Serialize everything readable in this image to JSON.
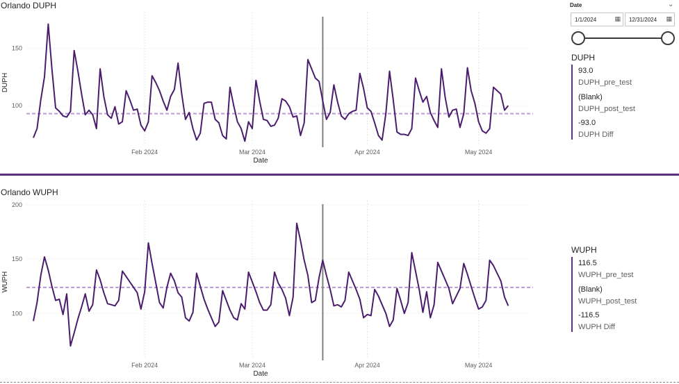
{
  "panel1": {
    "title": "Orlando DUPH"
  },
  "panel2": {
    "title": "Orlando WUPH"
  },
  "slicer": {
    "title": "Date",
    "start": "1/1/2024",
    "end": "12/31/2024"
  },
  "kpi1": {
    "title": "DUPH",
    "items": [
      {
        "value": "93.0",
        "label": "DUPH_pre_test"
      },
      {
        "value": "(Blank)",
        "label": "DUPH_post_test"
      },
      {
        "value": "-93.0",
        "label": "DUPH Diff"
      }
    ]
  },
  "kpi2": {
    "title": "WUPH",
    "items": [
      {
        "value": "116.5",
        "label": "WUPH_pre_test"
      },
      {
        "value": "(Blank)",
        "label": "WUPH_post_test"
      },
      {
        "value": "-116.5",
        "label": "WUPH Diff"
      }
    ]
  },
  "colors": {
    "line": "#4b1c6e",
    "avg": "#b89ad6",
    "marker": "#808080",
    "accent": "#5b2c83"
  },
  "chart_data": [
    {
      "type": "line",
      "ylabel": "DUPH",
      "xlabel": "Date",
      "x_ticks": [
        "Feb 2024",
        "Mar 2024",
        "Apr 2024",
        "May 2024"
      ],
      "y_ticks": [
        100,
        150
      ],
      "ylim": [
        65,
        175
      ],
      "x_range": [
        "2024-01-02",
        "2024-05-11"
      ],
      "average_line": 93,
      "marker_date": "2024-03-20",
      "grid": "vertical dotted",
      "points": [
        [
          "2024-01-02",
          72
        ],
        [
          "2024-01-03",
          80
        ],
        [
          "2024-01-04",
          105
        ],
        [
          "2024-01-05",
          125
        ],
        [
          "2024-01-06",
          171
        ],
        [
          "2024-01-07",
          132
        ],
        [
          "2024-01-08",
          98
        ],
        [
          "2024-01-09",
          95
        ],
        [
          "2024-01-10",
          91
        ],
        [
          "2024-01-11",
          90
        ],
        [
          "2024-01-12",
          95
        ],
        [
          "2024-01-13",
          148
        ],
        [
          "2024-01-14",
          130
        ],
        [
          "2024-01-15",
          110
        ],
        [
          "2024-01-16",
          92
        ],
        [
          "2024-01-17",
          96
        ],
        [
          "2024-01-18",
          92
        ],
        [
          "2024-01-19",
          80
        ],
        [
          "2024-01-20",
          132
        ],
        [
          "2024-01-21",
          108
        ],
        [
          "2024-01-22",
          92
        ],
        [
          "2024-01-23",
          89
        ],
        [
          "2024-01-24",
          99
        ],
        [
          "2024-01-25",
          84
        ],
        [
          "2024-01-26",
          86
        ],
        [
          "2024-01-27",
          113
        ],
        [
          "2024-01-28",
          105
        ],
        [
          "2024-01-29",
          96
        ],
        [
          "2024-01-30",
          97
        ],
        [
          "2024-01-31",
          83
        ],
        [
          "2024-02-01",
          78
        ],
        [
          "2024-02-02",
          86
        ],
        [
          "2024-02-03",
          126
        ],
        [
          "2024-02-04",
          120
        ],
        [
          "2024-02-05",
          113
        ],
        [
          "2024-02-06",
          104
        ],
        [
          "2024-02-07",
          96
        ],
        [
          "2024-02-08",
          108
        ],
        [
          "2024-02-09",
          114
        ],
        [
          "2024-02-10",
          137
        ],
        [
          "2024-02-11",
          110
        ],
        [
          "2024-02-12",
          88
        ],
        [
          "2024-02-13",
          94
        ],
        [
          "2024-02-14",
          80
        ],
        [
          "2024-02-15",
          70
        ],
        [
          "2024-02-16",
          76
        ],
        [
          "2024-02-17",
          102
        ],
        [
          "2024-02-18",
          103
        ],
        [
          "2024-02-19",
          103
        ],
        [
          "2024-02-20",
          88
        ],
        [
          "2024-02-21",
          85
        ],
        [
          "2024-02-22",
          74
        ],
        [
          "2024-02-23",
          71
        ],
        [
          "2024-02-24",
          116
        ],
        [
          "2024-02-25",
          100
        ],
        [
          "2024-02-26",
          86
        ],
        [
          "2024-02-27",
          80
        ],
        [
          "2024-02-28",
          69
        ],
        [
          "2024-02-29",
          86
        ],
        [
          "2024-03-01",
          80
        ],
        [
          "2024-03-02",
          122
        ],
        [
          "2024-03-03",
          104
        ],
        [
          "2024-03-04",
          88
        ],
        [
          "2024-03-05",
          87
        ],
        [
          "2024-03-06",
          82
        ],
        [
          "2024-03-07",
          83
        ],
        [
          "2024-03-08",
          89
        ],
        [
          "2024-03-09",
          106
        ],
        [
          "2024-03-10",
          104
        ],
        [
          "2024-03-11",
          99
        ],
        [
          "2024-03-12",
          90
        ],
        [
          "2024-03-13",
          91
        ],
        [
          "2024-03-14",
          74
        ],
        [
          "2024-03-15",
          85
        ],
        [
          "2024-03-16",
          140
        ],
        [
          "2024-03-17",
          132
        ],
        [
          "2024-03-18",
          124
        ],
        [
          "2024-03-19",
          121
        ],
        [
          "2024-03-20",
          104
        ],
        [
          "2024-03-21",
          88
        ],
        [
          "2024-03-22",
          94
        ],
        [
          "2024-03-23",
          118
        ],
        [
          "2024-03-24",
          103
        ],
        [
          "2024-03-25",
          91
        ],
        [
          "2024-03-26",
          88
        ],
        [
          "2024-03-27",
          93
        ],
        [
          "2024-03-28",
          95
        ],
        [
          "2024-03-29",
          96
        ],
        [
          "2024-03-30",
          128
        ],
        [
          "2024-03-31",
          115
        ],
        [
          "2024-04-01",
          98
        ],
        [
          "2024-04-02",
          95
        ],
        [
          "2024-04-03",
          85
        ],
        [
          "2024-04-04",
          74
        ],
        [
          "2024-04-05",
          70
        ],
        [
          "2024-04-06",
          93
        ],
        [
          "2024-04-07",
          130
        ],
        [
          "2024-04-08",
          105
        ],
        [
          "2024-04-09",
          77
        ],
        [
          "2024-04-10",
          75
        ],
        [
          "2024-04-11",
          75
        ],
        [
          "2024-04-12",
          74
        ],
        [
          "2024-04-13",
          80
        ],
        [
          "2024-04-14",
          124
        ],
        [
          "2024-04-15",
          113
        ],
        [
          "2024-04-16",
          103
        ],
        [
          "2024-04-17",
          108
        ],
        [
          "2024-04-18",
          94
        ],
        [
          "2024-04-19",
          87
        ],
        [
          "2024-04-20",
          81
        ],
        [
          "2024-04-21",
          132
        ],
        [
          "2024-04-22",
          107
        ],
        [
          "2024-04-23",
          90
        ],
        [
          "2024-04-24",
          96
        ],
        [
          "2024-04-25",
          97
        ],
        [
          "2024-04-26",
          81
        ],
        [
          "2024-04-27",
          93
        ],
        [
          "2024-04-28",
          133
        ],
        [
          "2024-04-29",
          113
        ],
        [
          "2024-04-30",
          102
        ],
        [
          "2024-05-01",
          86
        ],
        [
          "2024-05-02",
          78
        ],
        [
          "2024-05-03",
          76
        ],
        [
          "2024-05-04",
          80
        ],
        [
          "2024-05-05",
          116
        ],
        [
          "2024-05-06",
          113
        ],
        [
          "2024-05-07",
          110
        ],
        [
          "2024-05-08",
          96
        ],
        [
          "2024-05-09",
          100
        ]
      ]
    },
    {
      "type": "line",
      "ylabel": "WUPH",
      "xlabel": "Date",
      "x_ticks": [
        "Feb 2024",
        "Mar 2024",
        "Apr 2024",
        "May 2024"
      ],
      "y_ticks": [
        100,
        150,
        200
      ],
      "ylim": [
        58,
        200
      ],
      "x_range": [
        "2024-01-02",
        "2024-05-11"
      ],
      "average_line": 124,
      "marker_date": "2024-03-20",
      "grid": "vertical dotted",
      "points": [
        [
          "2024-01-02",
          93
        ],
        [
          "2024-01-03",
          110
        ],
        [
          "2024-01-04",
          135
        ],
        [
          "2024-01-05",
          152
        ],
        [
          "2024-01-06",
          140
        ],
        [
          "2024-01-07",
          125
        ],
        [
          "2024-01-08",
          112
        ],
        [
          "2024-01-09",
          113
        ],
        [
          "2024-01-10",
          99
        ],
        [
          "2024-01-11",
          118
        ],
        [
          "2024-01-12",
          70
        ],
        [
          "2024-01-13",
          82
        ],
        [
          "2024-01-14",
          95
        ],
        [
          "2024-01-15",
          106
        ],
        [
          "2024-01-16",
          118
        ],
        [
          "2024-01-17",
          102
        ],
        [
          "2024-01-18",
          108
        ],
        [
          "2024-01-19",
          140
        ],
        [
          "2024-01-20",
          131
        ],
        [
          "2024-01-21",
          119
        ],
        [
          "2024-01-22",
          109
        ],
        [
          "2024-01-23",
          108
        ],
        [
          "2024-01-24",
          107
        ],
        [
          "2024-01-25",
          112
        ],
        [
          "2024-01-26",
          139
        ],
        [
          "2024-01-27",
          134
        ],
        [
          "2024-01-28",
          129
        ],
        [
          "2024-01-29",
          124
        ],
        [
          "2024-01-30",
          119
        ],
        [
          "2024-01-31",
          104
        ],
        [
          "2024-02-01",
          120
        ],
        [
          "2024-02-02",
          165
        ],
        [
          "2024-02-03",
          146
        ],
        [
          "2024-02-04",
          128
        ],
        [
          "2024-02-05",
          110
        ],
        [
          "2024-02-06",
          105
        ],
        [
          "2024-02-07",
          124
        ],
        [
          "2024-02-08",
          137
        ],
        [
          "2024-02-09",
          130
        ],
        [
          "2024-02-10",
          119
        ],
        [
          "2024-02-11",
          115
        ],
        [
          "2024-02-12",
          96
        ],
        [
          "2024-02-13",
          93
        ],
        [
          "2024-02-14",
          101
        ],
        [
          "2024-02-15",
          137
        ],
        [
          "2024-02-16",
          125
        ],
        [
          "2024-02-17",
          113
        ],
        [
          "2024-02-18",
          104
        ],
        [
          "2024-02-19",
          96
        ],
        [
          "2024-02-20",
          88
        ],
        [
          "2024-02-21",
          92
        ],
        [
          "2024-02-22",
          121
        ],
        [
          "2024-02-23",
          112
        ],
        [
          "2024-02-24",
          103
        ],
        [
          "2024-02-25",
          96
        ],
        [
          "2024-02-26",
          94
        ],
        [
          "2024-02-27",
          109
        ],
        [
          "2024-02-28",
          104
        ],
        [
          "2024-02-29",
          138
        ],
        [
          "2024-03-01",
          129
        ],
        [
          "2024-03-02",
          120
        ],
        [
          "2024-03-03",
          110
        ],
        [
          "2024-03-04",
          103
        ],
        [
          "2024-03-05",
          103
        ],
        [
          "2024-03-06",
          108
        ],
        [
          "2024-03-07",
          138
        ],
        [
          "2024-03-08",
          128
        ],
        [
          "2024-03-09",
          122
        ],
        [
          "2024-03-10",
          114
        ],
        [
          "2024-03-11",
          98
        ],
        [
          "2024-03-12",
          115
        ],
        [
          "2024-03-13",
          183
        ],
        [
          "2024-03-14",
          167
        ],
        [
          "2024-03-15",
          149
        ],
        [
          "2024-03-16",
          135
        ],
        [
          "2024-03-17",
          110
        ],
        [
          "2024-03-18",
          112
        ],
        [
          "2024-03-19",
          133
        ],
        [
          "2024-03-20",
          149
        ],
        [
          "2024-03-21",
          135
        ],
        [
          "2024-03-22",
          122
        ],
        [
          "2024-03-23",
          107
        ],
        [
          "2024-03-24",
          108
        ],
        [
          "2024-03-25",
          106
        ],
        [
          "2024-03-26",
          112
        ],
        [
          "2024-03-27",
          138
        ],
        [
          "2024-03-28",
          130
        ],
        [
          "2024-03-29",
          122
        ],
        [
          "2024-03-30",
          113
        ],
        [
          "2024-03-31",
          96
        ],
        [
          "2024-04-01",
          99
        ],
        [
          "2024-04-02",
          98
        ],
        [
          "2024-04-03",
          122
        ],
        [
          "2024-04-04",
          116
        ],
        [
          "2024-04-05",
          108
        ],
        [
          "2024-04-06",
          100
        ],
        [
          "2024-04-07",
          88
        ],
        [
          "2024-04-08",
          94
        ],
        [
          "2024-04-09",
          123
        ],
        [
          "2024-04-10",
          112
        ],
        [
          "2024-04-11",
          100
        ],
        [
          "2024-04-12",
          110
        ],
        [
          "2024-04-13",
          156
        ],
        [
          "2024-04-14",
          139
        ],
        [
          "2024-04-15",
          122
        ],
        [
          "2024-04-16",
          101
        ],
        [
          "2024-04-17",
          120
        ],
        [
          "2024-04-18",
          96
        ],
        [
          "2024-04-19",
          108
        ],
        [
          "2024-04-20",
          147
        ],
        [
          "2024-04-21",
          139
        ],
        [
          "2024-04-22",
          131
        ],
        [
          "2024-04-23",
          123
        ],
        [
          "2024-04-24",
          109
        ],
        [
          "2024-04-25",
          116
        ],
        [
          "2024-04-26",
          123
        ],
        [
          "2024-04-27",
          146
        ],
        [
          "2024-04-28",
          136
        ],
        [
          "2024-04-29",
          125
        ],
        [
          "2024-04-30",
          114
        ],
        [
          "2024-05-01",
          104
        ],
        [
          "2024-05-02",
          106
        ],
        [
          "2024-05-03",
          112
        ],
        [
          "2024-05-04",
          149
        ],
        [
          "2024-05-05",
          144
        ],
        [
          "2024-05-06",
          137
        ],
        [
          "2024-05-07",
          130
        ],
        [
          "2024-05-08",
          115
        ],
        [
          "2024-05-09",
          107
        ]
      ]
    }
  ]
}
